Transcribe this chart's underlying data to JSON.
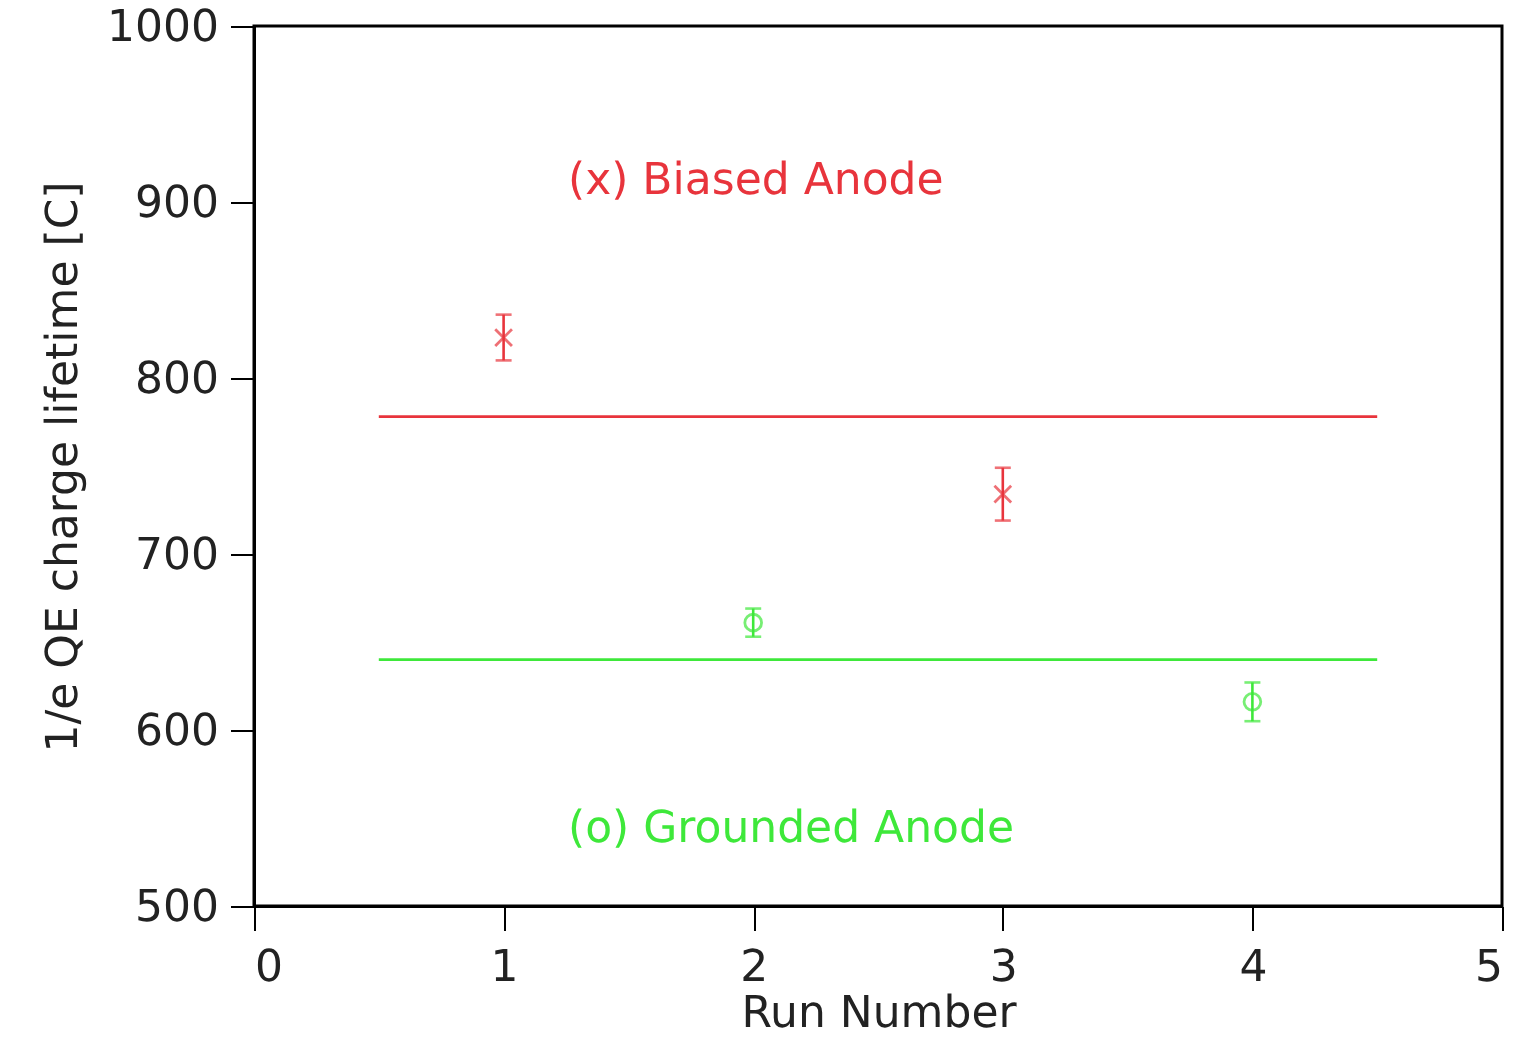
{
  "chart_data": {
    "type": "scatter",
    "xlabel": "Run Number",
    "ylabel": "1/e QE charge lifetime [C]",
    "xlim": [
      0,
      5
    ],
    "xticks": [
      0,
      1,
      2,
      3,
      4,
      5
    ],
    "ylim": [
      500,
      1000
    ],
    "yticks": [
      500,
      600,
      700,
      800,
      900,
      1000
    ],
    "grid": false,
    "legend": false,
    "series": [
      {
        "name": "(x) Biased Anode",
        "color": "#e8343c",
        "marker": "cross",
        "x": [
          1,
          3
        ],
        "values": [
          823,
          734
        ],
        "errors": [
          13,
          15
        ]
      },
      {
        "name": "(o) Grounded Anode",
        "color": "#3ee83a",
        "marker": "circle",
        "x": [
          2,
          4
        ],
        "values": [
          661,
          616
        ],
        "errors": [
          8,
          11
        ]
      },
      {
        "type": "line",
        "color": "#e8343c",
        "x": [
          0.5,
          4.5
        ],
        "values": [
          778,
          778
        ]
      },
      {
        "type": "line",
        "color": "#3ee83a",
        "x": [
          0.5,
          4.5
        ],
        "values": [
          640,
          640
        ]
      }
    ]
  }
}
